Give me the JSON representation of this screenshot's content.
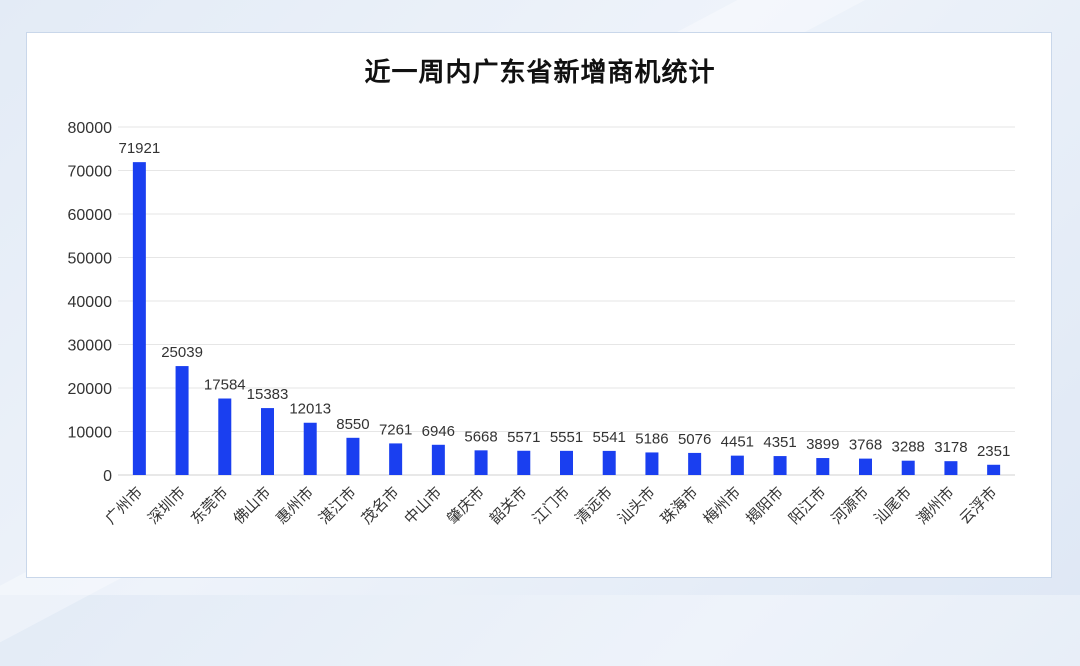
{
  "chart_data": {
    "type": "bar",
    "title": "近一周内广东省新增商机统计",
    "xlabel": "",
    "ylabel": "",
    "ylim": [
      0,
      80000
    ],
    "yticks": [
      0,
      10000,
      20000,
      30000,
      40000,
      50000,
      60000,
      70000,
      80000
    ],
    "grid": true,
    "bar_color": "#1a3ff0",
    "categories": [
      "广州市",
      "深圳市",
      "东莞市",
      "佛山市",
      "惠州市",
      "湛江市",
      "茂名市",
      "中山市",
      "肇庆市",
      "韶关市",
      "江门市",
      "清远市",
      "汕头市",
      "珠海市",
      "梅州市",
      "揭阳市",
      "阳江市",
      "河源市",
      "汕尾市",
      "潮州市",
      "云浮市"
    ],
    "values": [
      71921,
      25039,
      17584,
      15383,
      12013,
      8550,
      7261,
      6946,
      5668,
      5571,
      5551,
      5541,
      5186,
      5076,
      4451,
      4351,
      3899,
      3768,
      3288,
      3178,
      2351
    ]
  }
}
